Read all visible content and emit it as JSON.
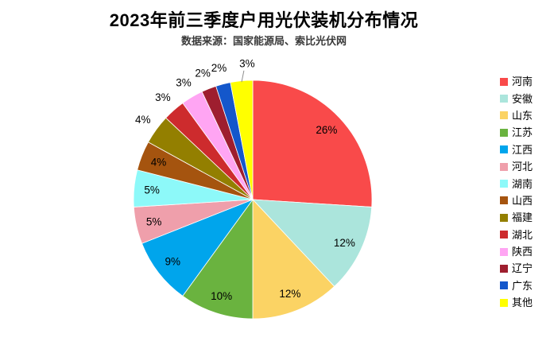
{
  "chart_data": {
    "type": "pie",
    "title": "2023年前三季度户用光伏装机分布情况",
    "subtitle": "数据来源：国家能源局、索比光伏网",
    "unit": "%",
    "total": 100,
    "start_angle_deg": 0,
    "direction": "clockwise",
    "legend_position": "right",
    "background_color": "#FFFFFF",
    "label_color": "#000000",
    "inside_label_count": 8,
    "leader_line_slice_index": 13,
    "slices": [
      {
        "name": "河南",
        "value": 26,
        "label": "26%",
        "color": "#F94A4A"
      },
      {
        "name": "安徽",
        "value": 12,
        "label": "12%",
        "color": "#ABE5DC"
      },
      {
        "name": "山东",
        "value": 12,
        "label": "12%",
        "color": "#FBD364"
      },
      {
        "name": "江苏",
        "value": 10,
        "label": "10%",
        "color": "#6AB33F"
      },
      {
        "name": "江西",
        "value": 9,
        "label": "9%",
        "color": "#00A5EC"
      },
      {
        "name": "河北",
        "value": 5,
        "label": "5%",
        "color": "#EF9FAB"
      },
      {
        "name": "湖南",
        "value": 5,
        "label": "5%",
        "color": "#8DF9F9"
      },
      {
        "name": "山西",
        "value": 4,
        "label": "4%",
        "color": "#A5540F"
      },
      {
        "name": "福建",
        "value": 4,
        "label": "4%",
        "color": "#937F00"
      },
      {
        "name": "湖北",
        "value": 3,
        "label": "3%",
        "color": "#CD2B2D"
      },
      {
        "name": "陕西",
        "value": 3,
        "label": "3%",
        "color": "#FFA5F3"
      },
      {
        "name": "辽宁",
        "value": 2,
        "label": "2%",
        "color": "#9E1E2F"
      },
      {
        "name": "广东",
        "value": 2,
        "label": "2%",
        "color": "#1457CB"
      },
      {
        "name": "其他",
        "value": 3,
        "label": "3%",
        "color": "#FFFF00"
      }
    ]
  }
}
